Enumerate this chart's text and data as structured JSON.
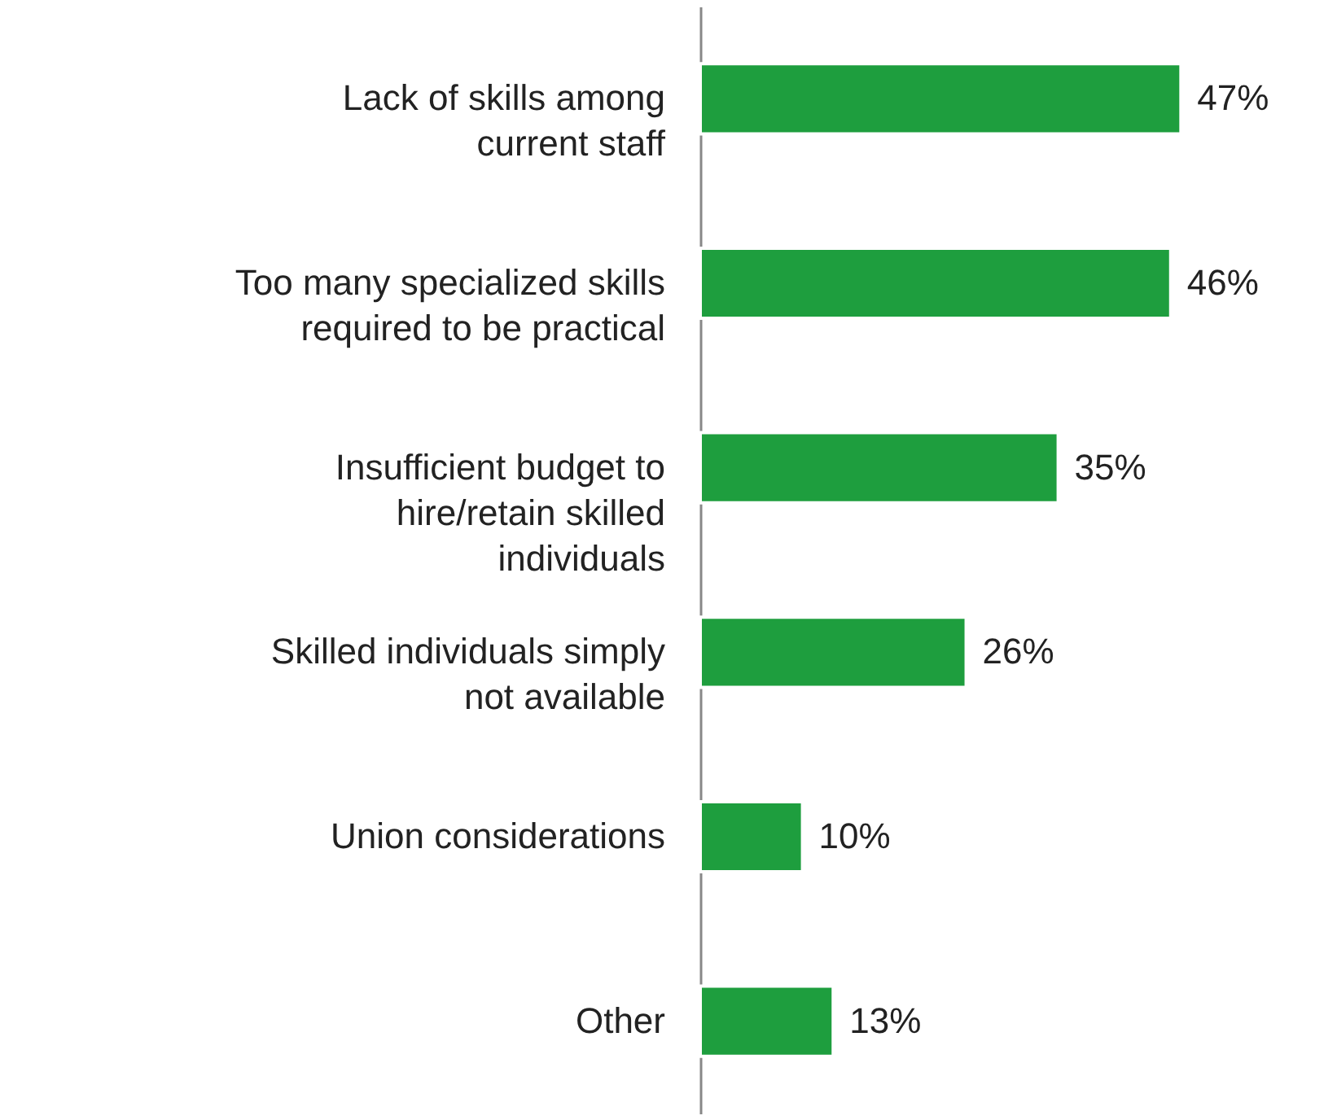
{
  "chart_data": {
    "type": "bar",
    "orientation": "horizontal",
    "categories": [
      "Lack of skills among current staff",
      "Too many specialized skills required to be practical",
      "Insufficient budget to hire/retain skilled individuals",
      "Skilled individuals simply not available",
      "Union considerations",
      "Other"
    ],
    "values": [
      47,
      46,
      35,
      26,
      10,
      13
    ],
    "value_labels": [
      "47%",
      "46%",
      "35%",
      "26%",
      "10%",
      "13%"
    ],
    "color": "#1e9e3e"
  }
}
